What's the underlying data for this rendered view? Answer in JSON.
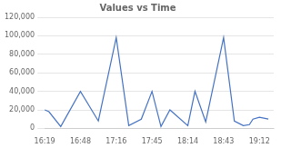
{
  "chart_data": {
    "type": "line",
    "title": "Values vs Time",
    "x": [
      0.0,
      0.12,
      0.45,
      1.0,
      1.5,
      2.0,
      2.35,
      2.7,
      3.0,
      3.25,
      3.5,
      4.0,
      4.2,
      4.5,
      5.0,
      5.3,
      5.55,
      5.72,
      5.82,
      6.0,
      6.25
    ],
    "values": [
      20000,
      18000,
      2000,
      40000,
      8000,
      98000,
      3000,
      10000,
      40000,
      2000,
      20000,
      3000,
      40000,
      7000,
      98000,
      8000,
      3000,
      4000,
      10000,
      12000,
      10000
    ],
    "color": "#4472C4",
    "xlim": [
      0,
      6.4
    ],
    "xticks": [
      {
        "value": 0,
        "label": "16:19"
      },
      {
        "value": 1,
        "label": "16:48"
      },
      {
        "value": 2,
        "label": "17:16"
      },
      {
        "value": 3,
        "label": "17:45"
      },
      {
        "value": 4,
        "label": "18:14"
      },
      {
        "value": 5,
        "label": "18:43"
      },
      {
        "value": 6,
        "label": "19:12"
      }
    ],
    "ylim": [
      0,
      120000
    ],
    "yticks": [
      0,
      {
        "value": 20000,
        "label": "20,000"
      },
      {
        "value": 40000,
        "label": "40,000"
      },
      {
        "value": 60000,
        "label": "60,000"
      },
      {
        "value": 80000,
        "label": "80,000"
      },
      {
        "value": 100000,
        "label": "100,000"
      },
      {
        "value": 120000,
        "label": "120,000"
      }
    ],
    "grid": "y"
  }
}
